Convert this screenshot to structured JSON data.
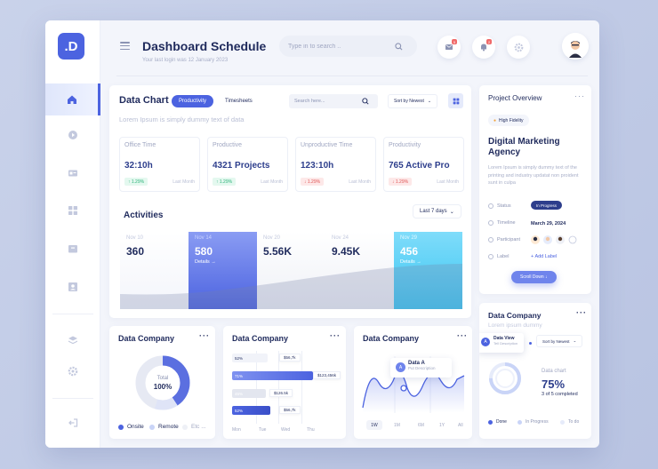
{
  "logo": ".D",
  "header": {
    "title": "Dashboard Schedule",
    "subtitle": "Your last login was 12 January 2023",
    "search_placeholder": "Type in to search ..",
    "mail_badge": "5",
    "bell_badge": "2"
  },
  "sidebar": {
    "items": [
      "home",
      "play",
      "card",
      "grid",
      "archive",
      "user"
    ],
    "bottom": [
      "layers",
      "settings",
      "logout"
    ]
  },
  "data_chart": {
    "title": "Data Chart",
    "tabs": [
      "Productivity",
      "Timesheets"
    ],
    "search_placeholder": "Search here...",
    "sort_label": "Sort by Newest",
    "lorem": "Lorem Ipsum is simply dummy text of data",
    "stats": [
      {
        "label": "Office Time",
        "value": "32:10h",
        "change": "1.29%",
        "dir": "up",
        "note": "Last Month"
      },
      {
        "label": "Productive",
        "value": "4321 Projects",
        "change": "1.29%",
        "dir": "up",
        "note": "Last Month"
      },
      {
        "label": "Unproductive Time",
        "value": "123:10h",
        "change": "1.29%",
        "dir": "down",
        "note": "Last Month"
      },
      {
        "label": "Productivity",
        "value": "765 Active Pro",
        "change": "1.29%",
        "dir": "down",
        "note": "Last Month"
      }
    ],
    "activities_title": "Activities",
    "range_label": "Last 7 days",
    "activities": [
      {
        "date": "Nov 10",
        "value": "360"
      },
      {
        "date": "Nov 14",
        "value": "580",
        "details": "Details →"
      },
      {
        "date": "Nov 20",
        "value": "5.56K"
      },
      {
        "date": "Nov 24",
        "value": "9.45K"
      },
      {
        "date": "Nov 29",
        "value": "456",
        "details": "Details →"
      }
    ]
  },
  "project": {
    "title": "Project Overview",
    "tag": "High Fidelity",
    "name": "Digital Marketing Agency",
    "desc": "Lorem Ipsum is simply dummy text of the printing and industry updatat non proident sunt in culpa",
    "status_label": "Status",
    "status_value": "In Progress",
    "timeline_label": "Timeline",
    "timeline_value": "March 29, 2024",
    "participant_label": "Participant",
    "label_label": "Label",
    "add_label": "Add Label",
    "scroll_btn": "Scroll Down"
  },
  "company_right": {
    "title": "Data Company",
    "lorem": "Lorem ipsum dummy",
    "popup_title": "Data View",
    "popup_sub": "Tell Description",
    "sort_label": "Sort by Newest",
    "chart_label": "Data chart",
    "percent": "75%",
    "completed": "3 of 5 completed",
    "legend": [
      "Done",
      "In Progress",
      "To do"
    ]
  },
  "company_donut": {
    "title": "Data Company",
    "center_label": "Total",
    "center_value": "100%",
    "legend": [
      "Onsite",
      "Remote",
      "Etc ..."
    ]
  },
  "company_bars": {
    "title": "Data Company",
    "bars": [
      {
        "pct": "52%",
        "tag": "$56,7k"
      },
      {
        "pct": "71%",
        "tag": "$123,456k"
      },
      {
        "pct": "45%",
        "tag": "$126.5k"
      },
      {
        "pct": "52%",
        "tag": "$56,7k"
      }
    ],
    "days": [
      "Mon",
      "Tue",
      "Wed",
      "Thu"
    ]
  },
  "company_line": {
    "title": "Data Company",
    "popup_title": "Data A",
    "popup_sub": "Put Description",
    "periods": [
      "1W",
      "1M",
      "6M",
      "1Y",
      "All"
    ]
  },
  "colors": {
    "accent": "#4c63e0",
    "up": "#2db37a",
    "down": "#e05656",
    "cyan": "#3bc6f2"
  }
}
